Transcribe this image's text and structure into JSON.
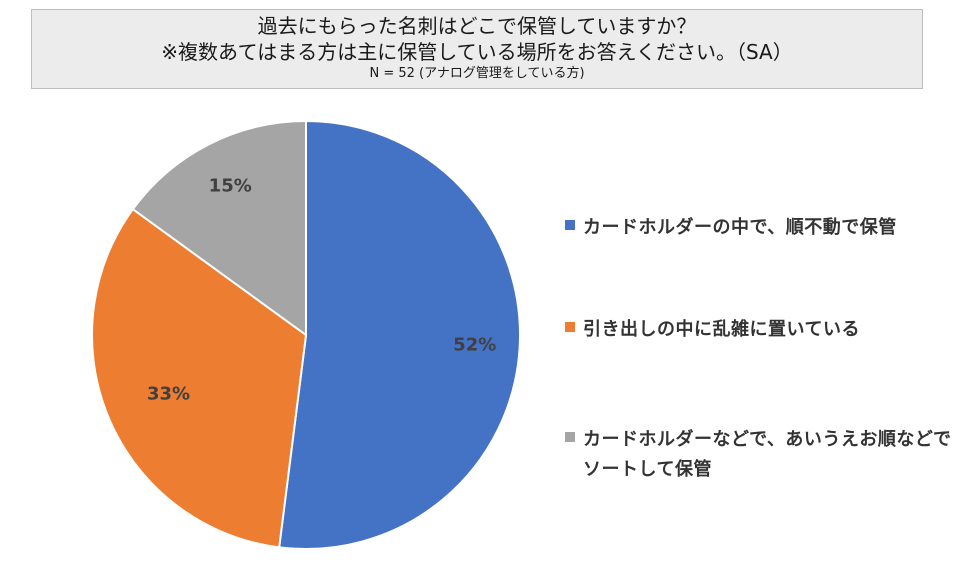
{
  "title": {
    "line1": "過去にもらった名刺はどこで保管していますか？",
    "line2": "※複数あてはまる方は主に保管している場所をお答えください。（SA）",
    "line3": "N = 52 (アナログ管理をしている方)"
  },
  "chart_data": {
    "type": "pie",
    "slices": [
      {
        "name": "カードホルダーの中で、順不動で保管",
        "value": 52,
        "label": "52%",
        "color": "#4472C4"
      },
      {
        "name": "引き出しの中に乱雑に置いている",
        "value": 33,
        "label": "33%",
        "color": "#ED7D31"
      },
      {
        "name": "カードホルダーなどで、あいうえお順などでソートして保管",
        "value": 15,
        "label": "15%",
        "color": "#A5A5A5"
      }
    ],
    "legend_position": "right",
    "start_angle": "12 o'clock",
    "direction": "clockwise"
  }
}
